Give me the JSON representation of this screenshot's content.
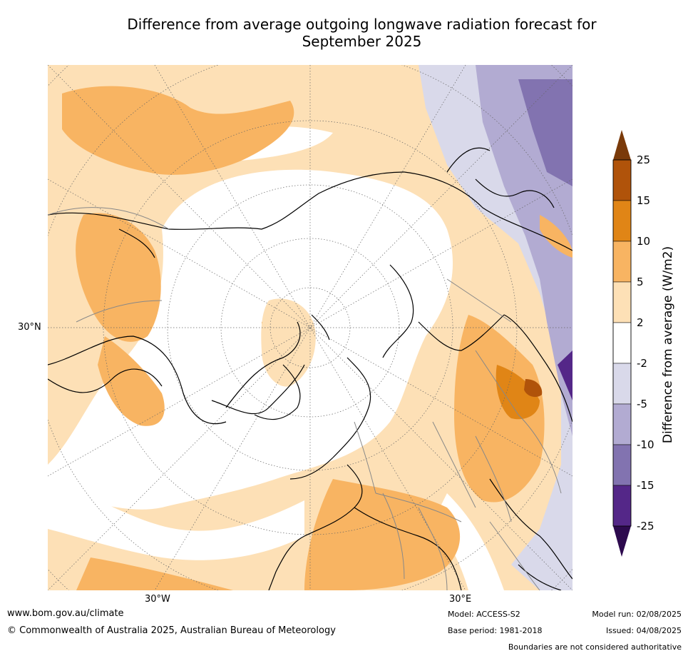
{
  "title_line1": "Difference from average outgoing longwave radiation forecast for",
  "title_line2": "September 2025",
  "axis": {
    "lat_label": "30°N",
    "lon_left": "30°W",
    "lon_right": "30°E"
  },
  "colorbar": {
    "title": "Difference from average (W/m2)",
    "ticks": [
      "25",
      "15",
      "10",
      "5",
      "2",
      "-2",
      "-5",
      "-10",
      "-15",
      "-25"
    ],
    "colors": {
      "above_25": "#7a3a0a",
      "15_25": "#b0530a",
      "10_15": "#e08516",
      "5_10": "#f8b462",
      "2_5": "#fde0b6",
      "neutral": "#ffffff",
      "m2_m5": "#d9d9ea",
      "m5_m10": "#b2abd2",
      "m10_m15": "#8273b0",
      "m15_m25": "#542788",
      "below_m25": "#2d0a4e"
    }
  },
  "footer": {
    "website": "www.bom.gov.au/climate",
    "copyright": "© Commonwealth of Australia 2025, Australian Bureau of Meteorology",
    "model": "Model: ACCESS-S2",
    "base_period": "Base period: 1981-2018",
    "model_run": "Model run: 02/08/2025",
    "issued": "Issued: 04/08/2025",
    "disclaimer": "Boundaries are not considered authoritative"
  }
}
